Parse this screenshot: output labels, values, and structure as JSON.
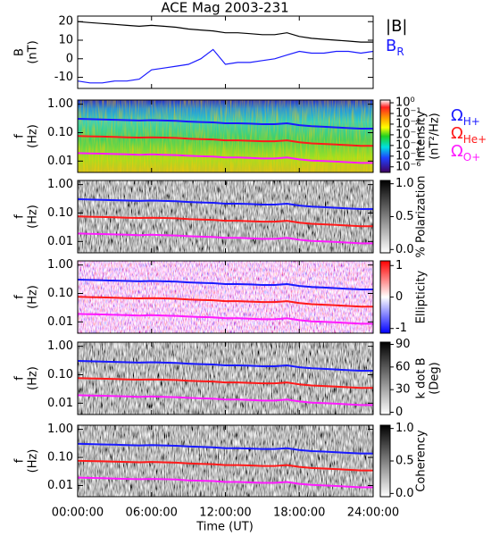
{
  "chart_data": {
    "type": "multi-panel",
    "title": "ACE Mag 2003-231",
    "x_label": "Time (UT)",
    "xlim": [
      0,
      24
    ],
    "xticks": [
      {
        "value": 0,
        "label": "00:00:00"
      },
      {
        "value": 6,
        "label": "06:00:00"
      },
      {
        "value": 12,
        "label": "12:00:00"
      },
      {
        "value": 18,
        "label": "18:00:00"
      },
      {
        "value": 24,
        "label": "24:00:00"
      }
    ],
    "x": [
      0,
      1,
      2,
      3,
      4,
      5,
      6,
      7,
      8,
      9,
      10,
      11,
      12,
      13,
      14,
      15,
      16,
      17,
      18,
      19,
      20,
      21,
      22,
      23,
      24
    ],
    "cyclotron": [
      {
        "name": "Ω",
        "name_sub": "H+",
        "color": "#1a1aff",
        "values": [
          0.306,
          0.298,
          0.291,
          0.283,
          0.275,
          0.268,
          0.275,
          0.268,
          0.26,
          0.245,
          0.237,
          0.23,
          0.214,
          0.214,
          0.207,
          0.199,
          0.199,
          0.214,
          0.184,
          0.168,
          0.161,
          0.153,
          0.145,
          0.138,
          0.138
        ]
      },
      {
        "name": "Ω",
        "name_sub": "He+",
        "color": "#ff1a1a",
        "values": [
          0.0765,
          0.0745,
          0.0728,
          0.0708,
          0.0688,
          0.067,
          0.0688,
          0.067,
          0.065,
          0.0613,
          0.0593,
          0.0575,
          0.0535,
          0.0535,
          0.0518,
          0.0498,
          0.0498,
          0.0535,
          0.046,
          0.042,
          0.0403,
          0.0383,
          0.0363,
          0.0345,
          0.0345
        ]
      },
      {
        "name": "Ω",
        "name_sub": "O+",
        "color": "#ff1aff",
        "values": [
          0.0191,
          0.0186,
          0.0182,
          0.0177,
          0.0172,
          0.0168,
          0.0172,
          0.0168,
          0.0163,
          0.0153,
          0.0148,
          0.0144,
          0.0134,
          0.0134,
          0.0129,
          0.0124,
          0.0124,
          0.0134,
          0.0115,
          0.0105,
          0.0101,
          0.0096,
          0.0091,
          0.0086,
          0.0086
        ]
      }
    ],
    "panels": [
      {
        "type": "line",
        "ylabel": [
          "B",
          "(nT)"
        ],
        "ylim": [
          -16,
          23
        ],
        "yticks": [
          -10,
          0,
          10,
          20
        ],
        "series": [
          {
            "name": "|B|",
            "color": "#000000",
            "values": [
              20,
              19.5,
              19,
              18.5,
              18,
              17.5,
              18,
              17.5,
              17,
              16,
              15.5,
              15,
              14,
              14,
              13.5,
              13,
              13,
              14,
              12,
              11,
              10.5,
              10,
              9.5,
              9,
              9
            ]
          },
          {
            "name": "B",
            "name_sub": "R",
            "color": "#1a1aff",
            "values": [
              -12,
              -13,
              -13,
              -12,
              -12,
              -11,
              -6,
              -5,
              -4,
              -3,
              0,
              5,
              -3,
              -2,
              -2,
              -1,
              0,
              2,
              4,
              3,
              3,
              4,
              4,
              3,
              4
            ]
          }
        ]
      },
      {
        "type": "spectrogram",
        "log_y": true,
        "ylabel": [
          "f",
          "(Hz)"
        ],
        "ylim": [
          0.004,
          1.4
        ],
        "yticks": [
          {
            "value": 1,
            "label": "1.00"
          },
          {
            "value": 0.1,
            "label": "0.10"
          },
          {
            "value": 0.01,
            "label": "0.01"
          }
        ],
        "cyclotron_legend": true,
        "colorbar": {
          "label": [
            "Intensity",
            "(nT²/Hz)"
          ],
          "colormap": "rainbow",
          "log": true,
          "clim": [
            3e-07,
            1.8
          ],
          "ticks": [
            {
              "value": 1,
              "label": "10⁰"
            },
            {
              "value": 0.1,
              "label": "10⁻¹"
            },
            {
              "value": 0.01,
              "label": "10⁻²"
            },
            {
              "value": 0.001,
              "label": "10⁻³"
            },
            {
              "value": 0.0001,
              "label": "10⁻⁴"
            },
            {
              "value": 1e-05,
              "label": "10⁻⁵"
            },
            {
              "value": 1e-06,
              "label": "10⁻⁶"
            }
          ]
        }
      },
      {
        "type": "spectrogram",
        "log_y": true,
        "ylabel": [
          "f",
          "(Hz)"
        ],
        "ylim": [
          0.004,
          1.4
        ],
        "yticks": [
          {
            "value": 1,
            "label": "1.00"
          },
          {
            "value": 0.1,
            "label": "0.10"
          },
          {
            "value": 0.01,
            "label": "0.01"
          }
        ],
        "colorbar": {
          "label": [
            "% Polarization"
          ],
          "colormap": "gray",
          "clim": [
            -0.05,
            1.05
          ],
          "ticks": [
            {
              "value": 0,
              "label": "0.0"
            },
            {
              "value": 0.5,
              "label": "0.5"
            },
            {
              "value": 1,
              "label": "1.0"
            }
          ]
        }
      },
      {
        "type": "spectrogram",
        "log_y": true,
        "ylabel": [
          "f",
          "(Hz)"
        ],
        "ylim": [
          0.004,
          1.4
        ],
        "yticks": [
          {
            "value": 1,
            "label": "1.00"
          },
          {
            "value": 0.1,
            "label": "0.10"
          },
          {
            "value": 0.01,
            "label": "0.01"
          }
        ],
        "colorbar": {
          "label": [
            "Ellipticity"
          ],
          "colormap": "bwr",
          "clim": [
            -1.15,
            1.15
          ],
          "ticks": [
            -1,
            0,
            1
          ]
        }
      },
      {
        "type": "spectrogram",
        "log_y": true,
        "ylabel": [
          "f",
          "(Hz)"
        ],
        "ylim": [
          0.004,
          1.4
        ],
        "yticks": [
          {
            "value": 1,
            "label": "1.00"
          },
          {
            "value": 0.1,
            "label": "0.10"
          },
          {
            "value": 0.01,
            "label": "0.01"
          }
        ],
        "colorbar": {
          "label": [
            "k dot B",
            "(Deg)"
          ],
          "colormap": "gray",
          "clim": [
            -3,
            93
          ],
          "ticks": [
            0,
            30,
            60,
            90
          ]
        }
      },
      {
        "type": "spectrogram",
        "log_y": true,
        "ylabel": [
          "f",
          "(Hz)"
        ],
        "ylim": [
          0.004,
          1.4
        ],
        "yticks": [
          {
            "value": 1,
            "label": "1.00"
          },
          {
            "value": 0.1,
            "label": "0.10"
          },
          {
            "value": 0.01,
            "label": "0.01"
          }
        ],
        "colorbar": {
          "label": [
            "Coherency"
          ],
          "colormap": "gray",
          "clim": [
            -0.05,
            1.05
          ],
          "ticks": [
            {
              "value": 0,
              "label": "0.0"
            },
            {
              "value": 0.5,
              "label": "0.5"
            },
            {
              "value": 1,
              "label": "1.0"
            }
          ]
        }
      }
    ]
  }
}
